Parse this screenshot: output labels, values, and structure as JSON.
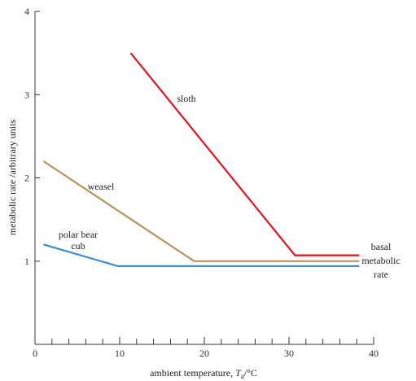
{
  "chart_data": {
    "type": "line",
    "xlabel_main": "ambient temperature, ",
    "xlabel_sym": "T",
    "xlabel_sub": "a",
    "xlabel_unit": "/°C",
    "ylabel": "metabolic rate /arbitrary units",
    "xlim": [
      0,
      40
    ],
    "ylim": [
      0,
      4
    ],
    "x_major_ticks": [
      0,
      10,
      20,
      30,
      40
    ],
    "x_minor_ticks": [
      2,
      4,
      6,
      8,
      12,
      14,
      16,
      18,
      22,
      24,
      26,
      28,
      32,
      34,
      36,
      38
    ],
    "y_ticks": [
      1,
      2,
      3,
      4
    ],
    "grid": false,
    "series": [
      {
        "name": "sloth",
        "color": "#e0161f",
        "points": [
          [
            11.3,
            3.5
          ],
          [
            30.7,
            1.07
          ],
          [
            38.3,
            1.07
          ]
        ]
      },
      {
        "name": "weasel",
        "color": "#b8925a",
        "points": [
          [
            1,
            2.2
          ],
          [
            18.8,
            1.0
          ],
          [
            38.3,
            1.0
          ]
        ]
      },
      {
        "name": "polar bear cub",
        "color": "#3a8fd0",
        "points": [
          [
            1,
            1.2
          ],
          [
            9.8,
            0.94
          ],
          [
            38.3,
            0.94
          ]
        ]
      }
    ],
    "annotations": {
      "sloth": "sloth",
      "weasel": "weasel",
      "polar_line1": "polar bear",
      "polar_line2": "cub",
      "basal_line1": "basal",
      "basal_line2": "metabolic",
      "basal_line3": "rate"
    }
  }
}
